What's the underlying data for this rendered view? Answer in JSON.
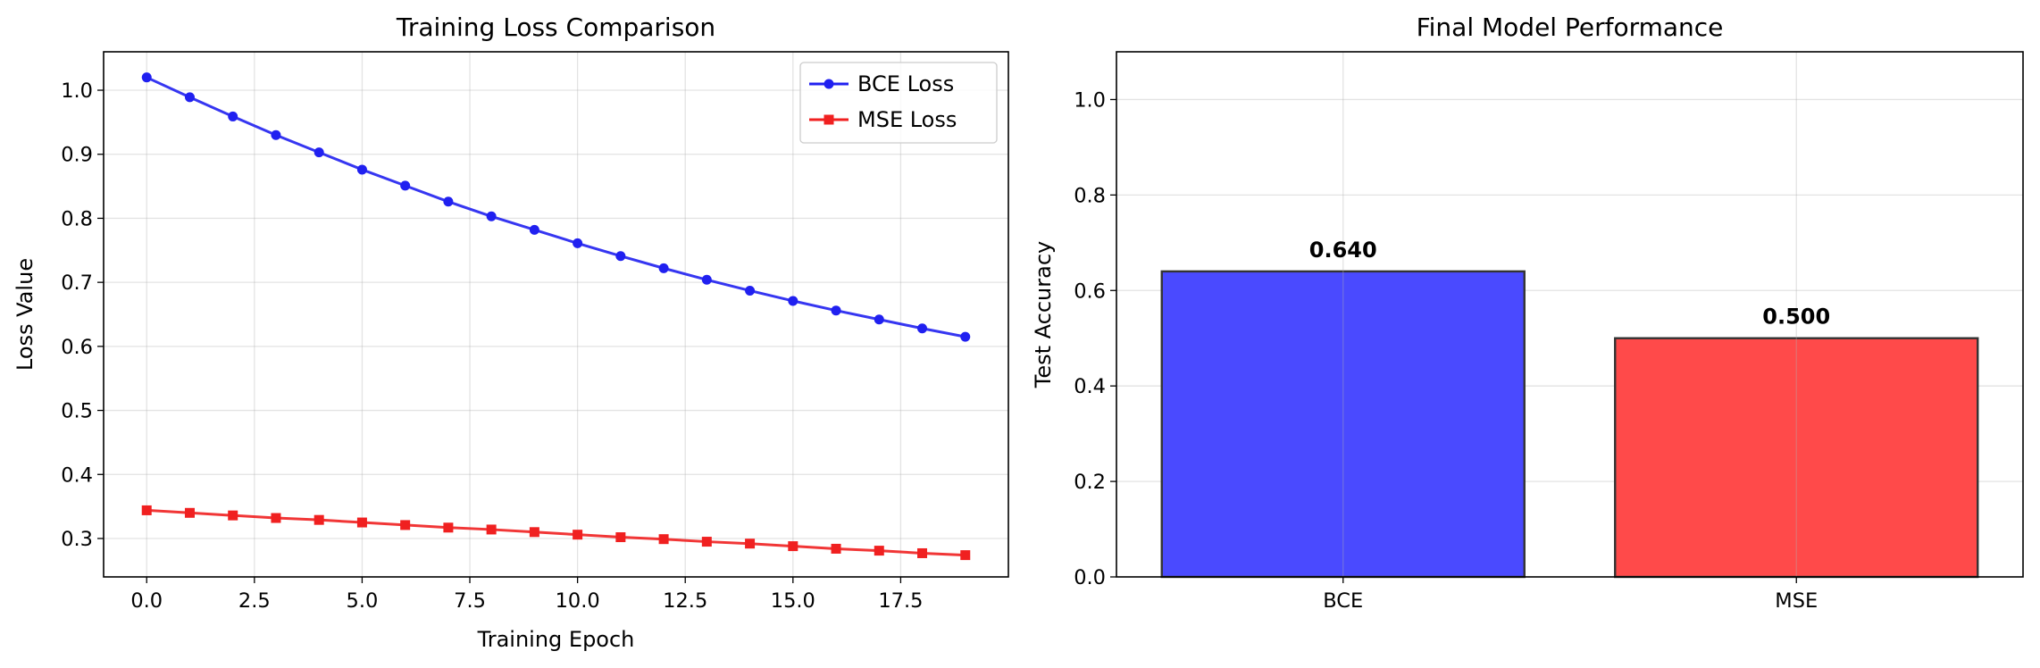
{
  "chart_data": [
    {
      "type": "line",
      "title": "Training Loss Comparison",
      "xlabel": "Training Epoch",
      "ylabel": "Loss Value",
      "xlim": [
        -1,
        20
      ],
      "ylim": [
        0.24,
        1.06
      ],
      "xticks": [
        0.0,
        2.5,
        5.0,
        7.5,
        10.0,
        12.5,
        15.0,
        17.5
      ],
      "xtick_labels": [
        "0.0",
        "2.5",
        "5.0",
        "7.5",
        "10.0",
        "12.5",
        "15.0",
        "17.5"
      ],
      "yticks": [
        0.3,
        0.4,
        0.5,
        0.6,
        0.7,
        0.8,
        0.9,
        1.0
      ],
      "ytick_labels": [
        "0.3",
        "0.4",
        "0.5",
        "0.6",
        "0.7",
        "0.8",
        "0.9",
        "1.0"
      ],
      "grid": true,
      "legend": "top-right",
      "x": [
        0,
        1,
        2,
        3,
        4,
        5,
        6,
        7,
        8,
        9,
        10,
        11,
        12,
        13,
        14,
        15,
        16,
        17,
        18,
        19
      ],
      "series": [
        {
          "name": "BCE Loss",
          "color": "#2020f0",
          "marker": "circle",
          "values": [
            1.02,
            0.989,
            0.959,
            0.93,
            0.903,
            0.876,
            0.851,
            0.826,
            0.803,
            0.782,
            0.761,
            0.741,
            0.722,
            0.704,
            0.687,
            0.671,
            0.656,
            0.642,
            0.628,
            0.615
          ]
        },
        {
          "name": "MSE Loss",
          "color": "#f02020",
          "marker": "square",
          "values": [
            0.344,
            0.34,
            0.336,
            0.332,
            0.329,
            0.325,
            0.321,
            0.317,
            0.314,
            0.31,
            0.306,
            0.302,
            0.299,
            0.295,
            0.292,
            0.288,
            0.284,
            0.281,
            0.277,
            0.274
          ]
        }
      ]
    },
    {
      "type": "bar",
      "title": "Final Model Performance",
      "xlabel": "",
      "ylabel": "Test Accuracy",
      "ylim": [
        0,
        1.1
      ],
      "yticks": [
        0.0,
        0.2,
        0.4,
        0.6,
        0.8,
        1.0
      ],
      "ytick_labels": [
        "0.0",
        "0.2",
        "0.4",
        "0.6",
        "0.8",
        "1.0"
      ],
      "grid": true,
      "categories": [
        "BCE",
        "MSE"
      ],
      "values": [
        0.64,
        0.5
      ],
      "value_labels": [
        "0.640",
        "0.500"
      ],
      "colors": [
        "#4a4aff",
        "#ff4a4a"
      ]
    }
  ]
}
